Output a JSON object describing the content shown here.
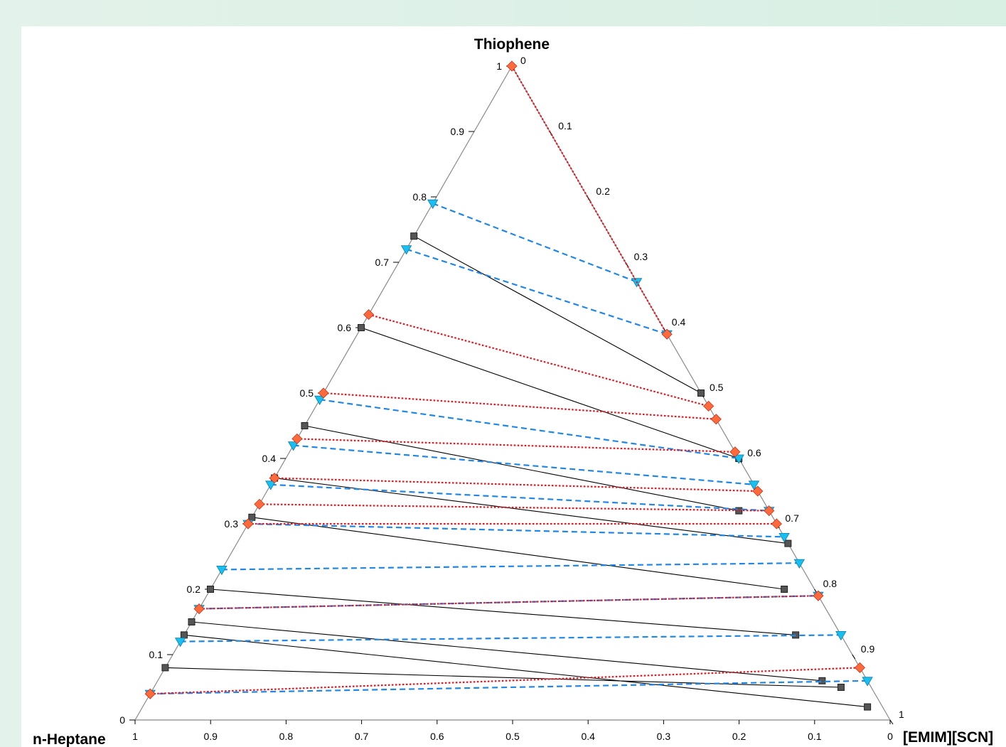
{
  "chart_data": {
    "type": "ternary",
    "title": "",
    "vertices": {
      "top": "Thiophene",
      "left": "n-Heptane",
      "right": "[EMIM][SCN]"
    },
    "axis_ticks": {
      "thiophene": [
        "0",
        "0.1",
        "0.2",
        "0.3",
        "0.4",
        "0.5",
        "0.6",
        "0.7",
        "0.8",
        "0.9",
        "1"
      ],
      "heptane": [
        "1",
        "0.9",
        "0.8",
        "0.7",
        "0.6",
        "0.5",
        "0.4",
        "0.3",
        "0.2",
        "0.1",
        "0"
      ],
      "ionic_liquid": [
        "0",
        "0.1",
        "0.2",
        "0.3",
        "0.4",
        "0.5",
        "0.6",
        "0.7",
        "0.8",
        "0.9",
        "1"
      ]
    },
    "series": [
      {
        "style": "solid",
        "color": "#000000",
        "marker": "square",
        "marker_color": "#555555",
        "tie_lines": [
          [
            [
              0.74,
              0.0
            ],
            [
              0.5,
              0.5
            ]
          ],
          [
            [
              0.6,
              0.0
            ],
            [
              0.4,
              0.6
            ]
          ],
          [
            [
              0.45,
              0.0
            ],
            [
              0.32,
              0.64
            ]
          ],
          [
            [
              0.37,
              0.0
            ],
            [
              0.27,
              0.73
            ]
          ],
          [
            [
              0.31,
              0.0
            ],
            [
              0.2,
              0.76
            ]
          ],
          [
            [
              0.2,
              0.0
            ],
            [
              0.13,
              0.81
            ]
          ],
          [
            [
              0.15,
              0.0
            ],
            [
              0.06,
              0.88
            ]
          ],
          [
            [
              0.08,
              0.0
            ],
            [
              0.05,
              0.91
            ]
          ],
          [
            [
              0.13,
              0.0
            ],
            [
              0.02,
              0.96
            ]
          ]
        ]
      },
      {
        "style": "dashed",
        "color": "#1f87e8",
        "marker": "triangle-down",
        "marker_color": "#18c0f0",
        "tie_lines": [
          [
            [
              0.79,
              0.0
            ],
            [
              0.67,
              0.33
            ]
          ],
          [
            [
              0.72,
              0.0
            ],
            [
              0.59,
              0.41
            ]
          ],
          [
            [
              0.49,
              0.0
            ],
            [
              0.4,
              0.6
            ]
          ],
          [
            [
              0.42,
              0.0
            ],
            [
              0.36,
              0.64
            ]
          ],
          [
            [
              0.36,
              0.0
            ],
            [
              0.32,
              0.68
            ]
          ],
          [
            [
              0.3,
              0.0
            ],
            [
              0.28,
              0.72
            ]
          ],
          [
            [
              0.23,
              0.0
            ],
            [
              0.24,
              0.76
            ]
          ],
          [
            [
              0.17,
              0.0
            ],
            [
              0.19,
              0.81
            ]
          ],
          [
            [
              0.12,
              0.0
            ],
            [
              0.13,
              0.87
            ]
          ],
          [
            [
              0.04,
              0.0
            ],
            [
              0.06,
              0.94
            ]
          ]
        ]
      },
      {
        "style": "dotted",
        "color": "#e8141e",
        "marker": "diamond",
        "marker_color": "#ff6a3d",
        "tie_lines": [
          [
            [
              1.0,
              0.0
            ],
            [
              0.59,
              0.41
            ]
          ],
          [
            [
              0.62,
              0.0
            ],
            [
              0.48,
              0.52
            ]
          ],
          [
            [
              0.5,
              0.0
            ],
            [
              0.46,
              0.54
            ]
          ],
          [
            [
              0.43,
              0.0
            ],
            [
              0.41,
              0.59
            ]
          ],
          [
            [
              0.37,
              0.0
            ],
            [
              0.35,
              0.65
            ]
          ],
          [
            [
              0.33,
              0.0
            ],
            [
              0.32,
              0.68
            ]
          ],
          [
            [
              0.3,
              0.0
            ],
            [
              0.3,
              0.7
            ]
          ],
          [
            [
              0.17,
              0.0
            ],
            [
              0.19,
              0.81
            ]
          ],
          [
            [
              0.04,
              0.0
            ],
            [
              0.08,
              0.92
            ]
          ]
        ]
      }
    ]
  }
}
